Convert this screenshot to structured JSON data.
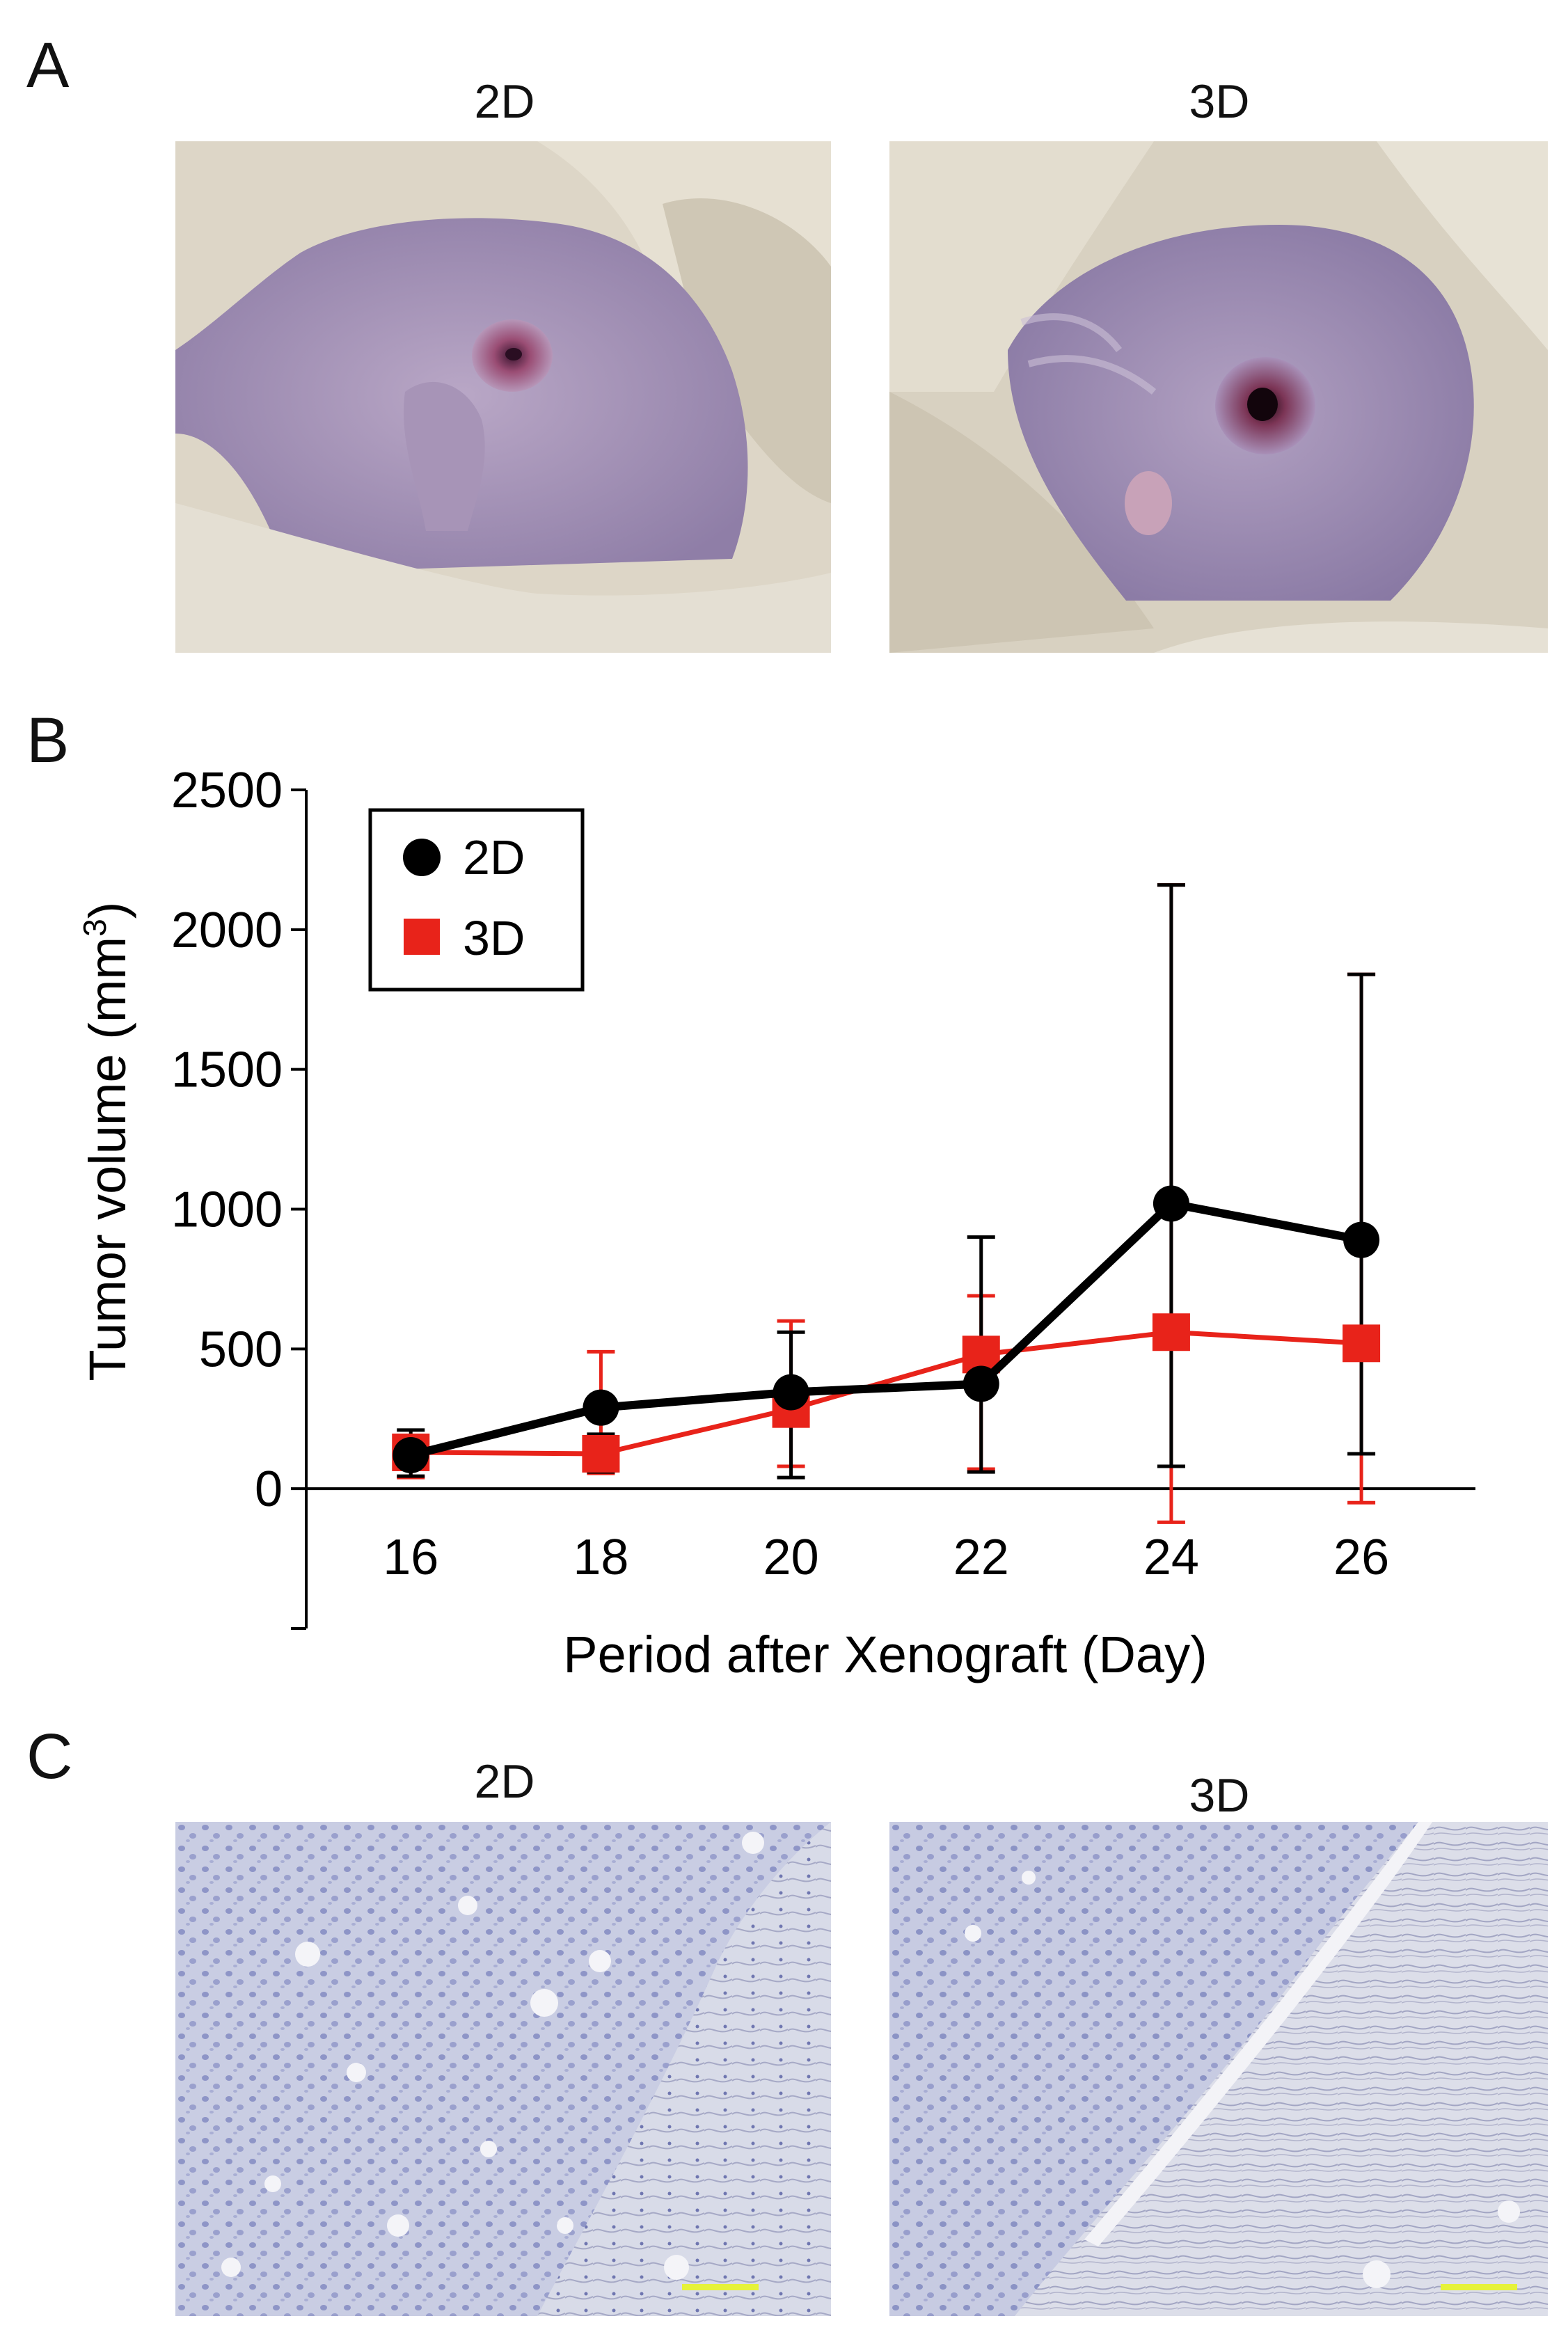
{
  "panels": {
    "a": {
      "letter": "A",
      "left_caption": "2D",
      "right_caption": "3D"
    },
    "b": {
      "letter": "B"
    },
    "c": {
      "letter": "C",
      "left_caption": "2D",
      "right_caption": "3D"
    }
  },
  "colors": {
    "series_2d": "#000000",
    "series_3d": "#e8231a",
    "scale_bar": "#e6f23a"
  },
  "chart_data": {
    "type": "line",
    "title": "",
    "xlabel": "Period after Xenograft (Day)",
    "ylabel_main": "Tumor volume (mm",
    "ylabel_sup": "3",
    "ylabel_end": ")",
    "x": [
      16,
      18,
      20,
      22,
      24,
      26
    ],
    "x_tick_labels": [
      "16",
      "18",
      "20",
      "22",
      "24",
      "26"
    ],
    "y_ticks": [
      0,
      500,
      1000,
      1500,
      2000,
      2500
    ],
    "y_tick_labels": [
      "0",
      "500",
      "1000",
      "1500",
      "2000",
      "2500"
    ],
    "ylim": [
      -500,
      2500
    ],
    "xlim": [
      14.9,
      27.2
    ],
    "legend_position": "top-left",
    "series": [
      {
        "name": "2D",
        "marker": "circle",
        "color": "#000000",
        "values": [
          120,
          290,
          345,
          375,
          1020,
          890
        ],
        "err_upper": [
          210,
          195,
          560,
          900,
          2160,
          1840
        ],
        "err_lower": [
          45,
          60,
          40,
          60,
          80,
          125
        ]
      },
      {
        "name": "3D",
        "marker": "square",
        "color": "#e8231a",
        "values": [
          130,
          125,
          285,
          480,
          560,
          520
        ],
        "err_upper": [
          190,
          490,
          600,
          690,
          2160,
          1840
        ],
        "err_lower": [
          40,
          55,
          80,
          70,
          -120,
          -50
        ]
      }
    ]
  }
}
